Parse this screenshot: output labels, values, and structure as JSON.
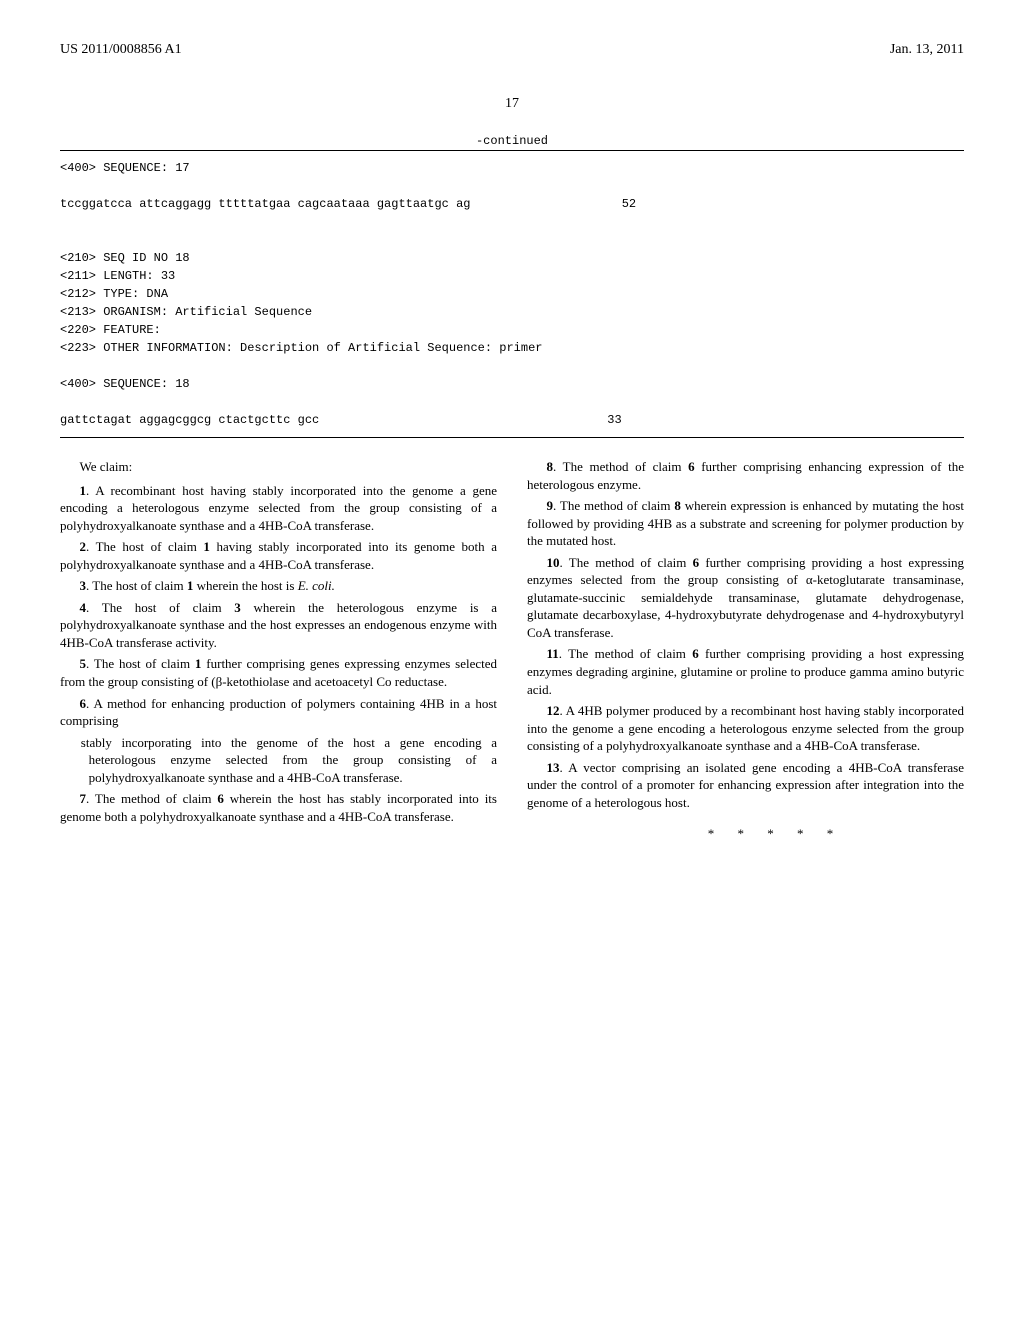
{
  "header": {
    "pub_number": "US 2011/0008856 A1",
    "pub_date": "Jan. 13, 2011"
  },
  "page_number": "17",
  "sequence": {
    "continued_label": "-continued",
    "block1_line1": "<400> SEQUENCE: 17",
    "block1_seq": "tccggatcca attcaggagg tttttatgaa cagcaataaa gagttaatgc ag",
    "block1_len": "52",
    "block2_line1": "<210> SEQ ID NO 18",
    "block2_line2": "<211> LENGTH: 33",
    "block2_line3": "<212> TYPE: DNA",
    "block2_line4": "<213> ORGANISM: Artificial Sequence",
    "block2_line5": "<220> FEATURE:",
    "block2_line6": "<223> OTHER INFORMATION: Description of Artificial Sequence: primer",
    "block2_line7": "<400> SEQUENCE: 18",
    "block2_seq": "gattctagat aggagcggcg ctactgcttc gcc",
    "block2_len": "33"
  },
  "claims": {
    "intro": "We claim:",
    "c1": "1. A recombinant host having stably incorporated into the genome a gene encoding a heterologous enzyme selected from the group consisting of a polyhydroxyalkanoate synthase and a 4HB-CoA transferase.",
    "c2": "2. The host of claim 1 having stably incorporated into its genome both a polyhydroxyalkanoate synthase and a 4HB-CoA transferase.",
    "c3": "3. The host of claim 1 wherein the host is E. coli.",
    "c4": "4. The host of claim 3 wherein the heterologous enzyme is a polyhydroxyalkanoate synthase and the host expresses an endogenous enzyme with 4HB-CoA transferase activity.",
    "c5": "5. The host of claim 1 further comprising genes expressing enzymes selected from the group consisting of (β-ketothiolase and acetoacetyl Co reductase.",
    "c6": "6. A method for enhancing production of polymers containing 4HB in a host comprising",
    "c6sub": "stably incorporating into the genome of the host a gene encoding a heterologous enzyme selected from the group consisting of a polyhydroxyalkanoate synthase and a 4HB-CoA transferase.",
    "c7": "7. The method of claim 6 wherein the host has stably incorporated into its genome both a polyhydroxyalkanoate synthase and a 4HB-CoA transferase.",
    "c8": "8. The method of claim 6 further comprising enhancing expression of the heterologous enzyme.",
    "c9": "9. The method of claim 8 wherein expression is enhanced by mutating the host followed by providing 4HB as a substrate and screening for polymer production by the mutated host.",
    "c10": "10. The method of claim 6 further comprising providing a host expressing enzymes selected from the group consisting of α-ketoglutarate transaminase, glutamate-succinic semialdehyde transaminase, glutamate dehydrogenase, glutamate decarboxylase, 4-hydroxybutyrate dehydrogenase and 4-hydroxybutyryl CoA transferase.",
    "c11": "11. The method of claim 6 further comprising providing a host expressing enzymes degrading arginine, glutamine or proline to produce gamma amino butyric acid.",
    "c12": "12. A 4HB polymer produced by a recombinant host having stably incorporated into the genome a gene encoding a heterologous enzyme selected from the group consisting of a polyhydroxyalkanoate synthase and a 4HB-CoA transferase.",
    "c13": "13. A vector comprising an isolated gene encoding a 4HB-CoA transferase under the control of a promoter for enhancing expression after integration into the genome of a heterologous host.",
    "stars": "* * * * *"
  }
}
